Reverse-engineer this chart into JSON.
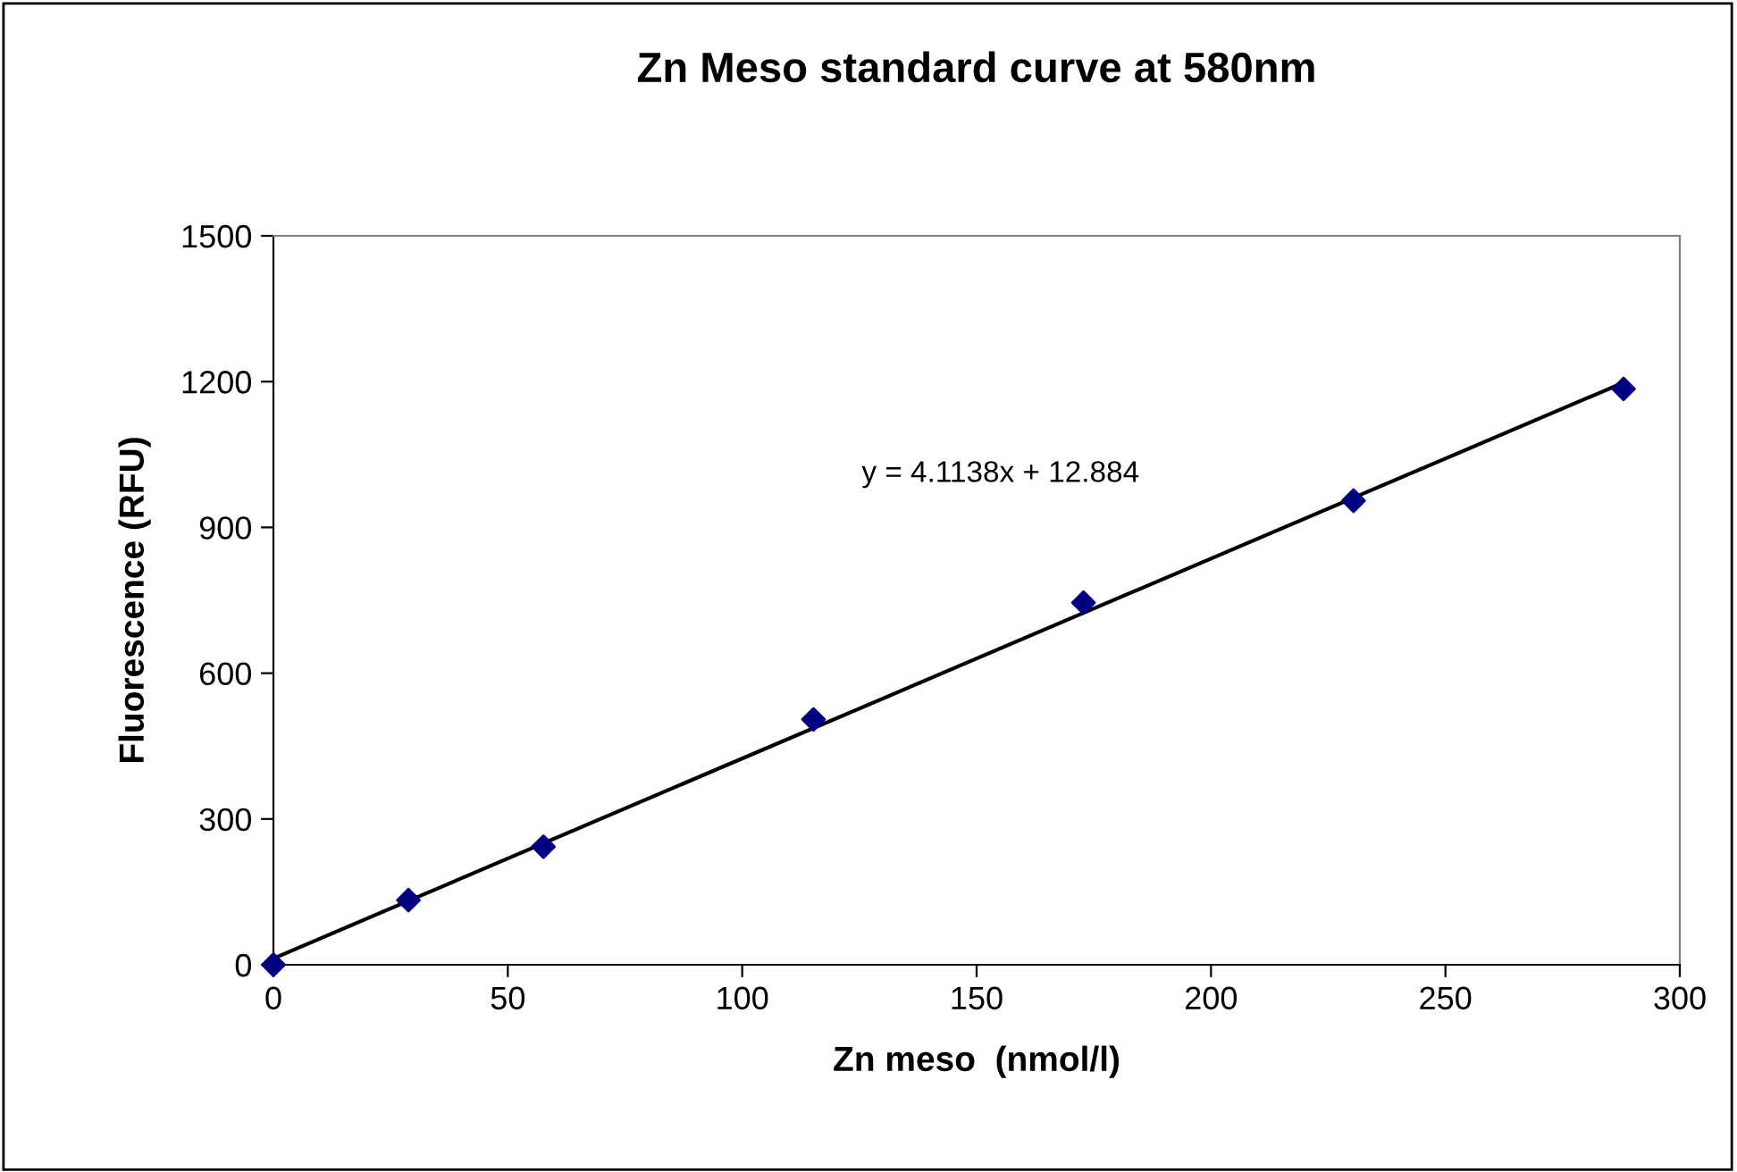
{
  "chart_data": {
    "type": "scatter",
    "title": "Zn Meso standard curve at 580nm",
    "xlabel": "Zn meso  (nmol/l)",
    "ylabel": "Fluorescence (RFU)",
    "x": [
      0,
      28.8,
      57.6,
      115.2,
      172.8,
      230.4,
      288
    ],
    "series": [
      {
        "color": "#000080",
        "marker": "diamond",
        "values": [
          0,
          133,
          243,
          505,
          745,
          955,
          1185
        ]
      },
      {
        "type": "line",
        "color": "#000000",
        "marker": "none",
        "line_style": "solid",
        "x": [
          0,
          288
        ],
        "values": [
          13,
          1198
        ]
      }
    ],
    "annotations": [
      "y = 4.1138x + 12.884"
    ],
    "xlim": [
      0,
      300
    ],
    "xticks": [
      0,
      50,
      100,
      150,
      200,
      250,
      300
    ],
    "ylim": [
      0,
      1500
    ],
    "yticks": [
      0,
      300,
      600,
      900,
      1200,
      1500
    ],
    "grid": false,
    "legend": false
  }
}
